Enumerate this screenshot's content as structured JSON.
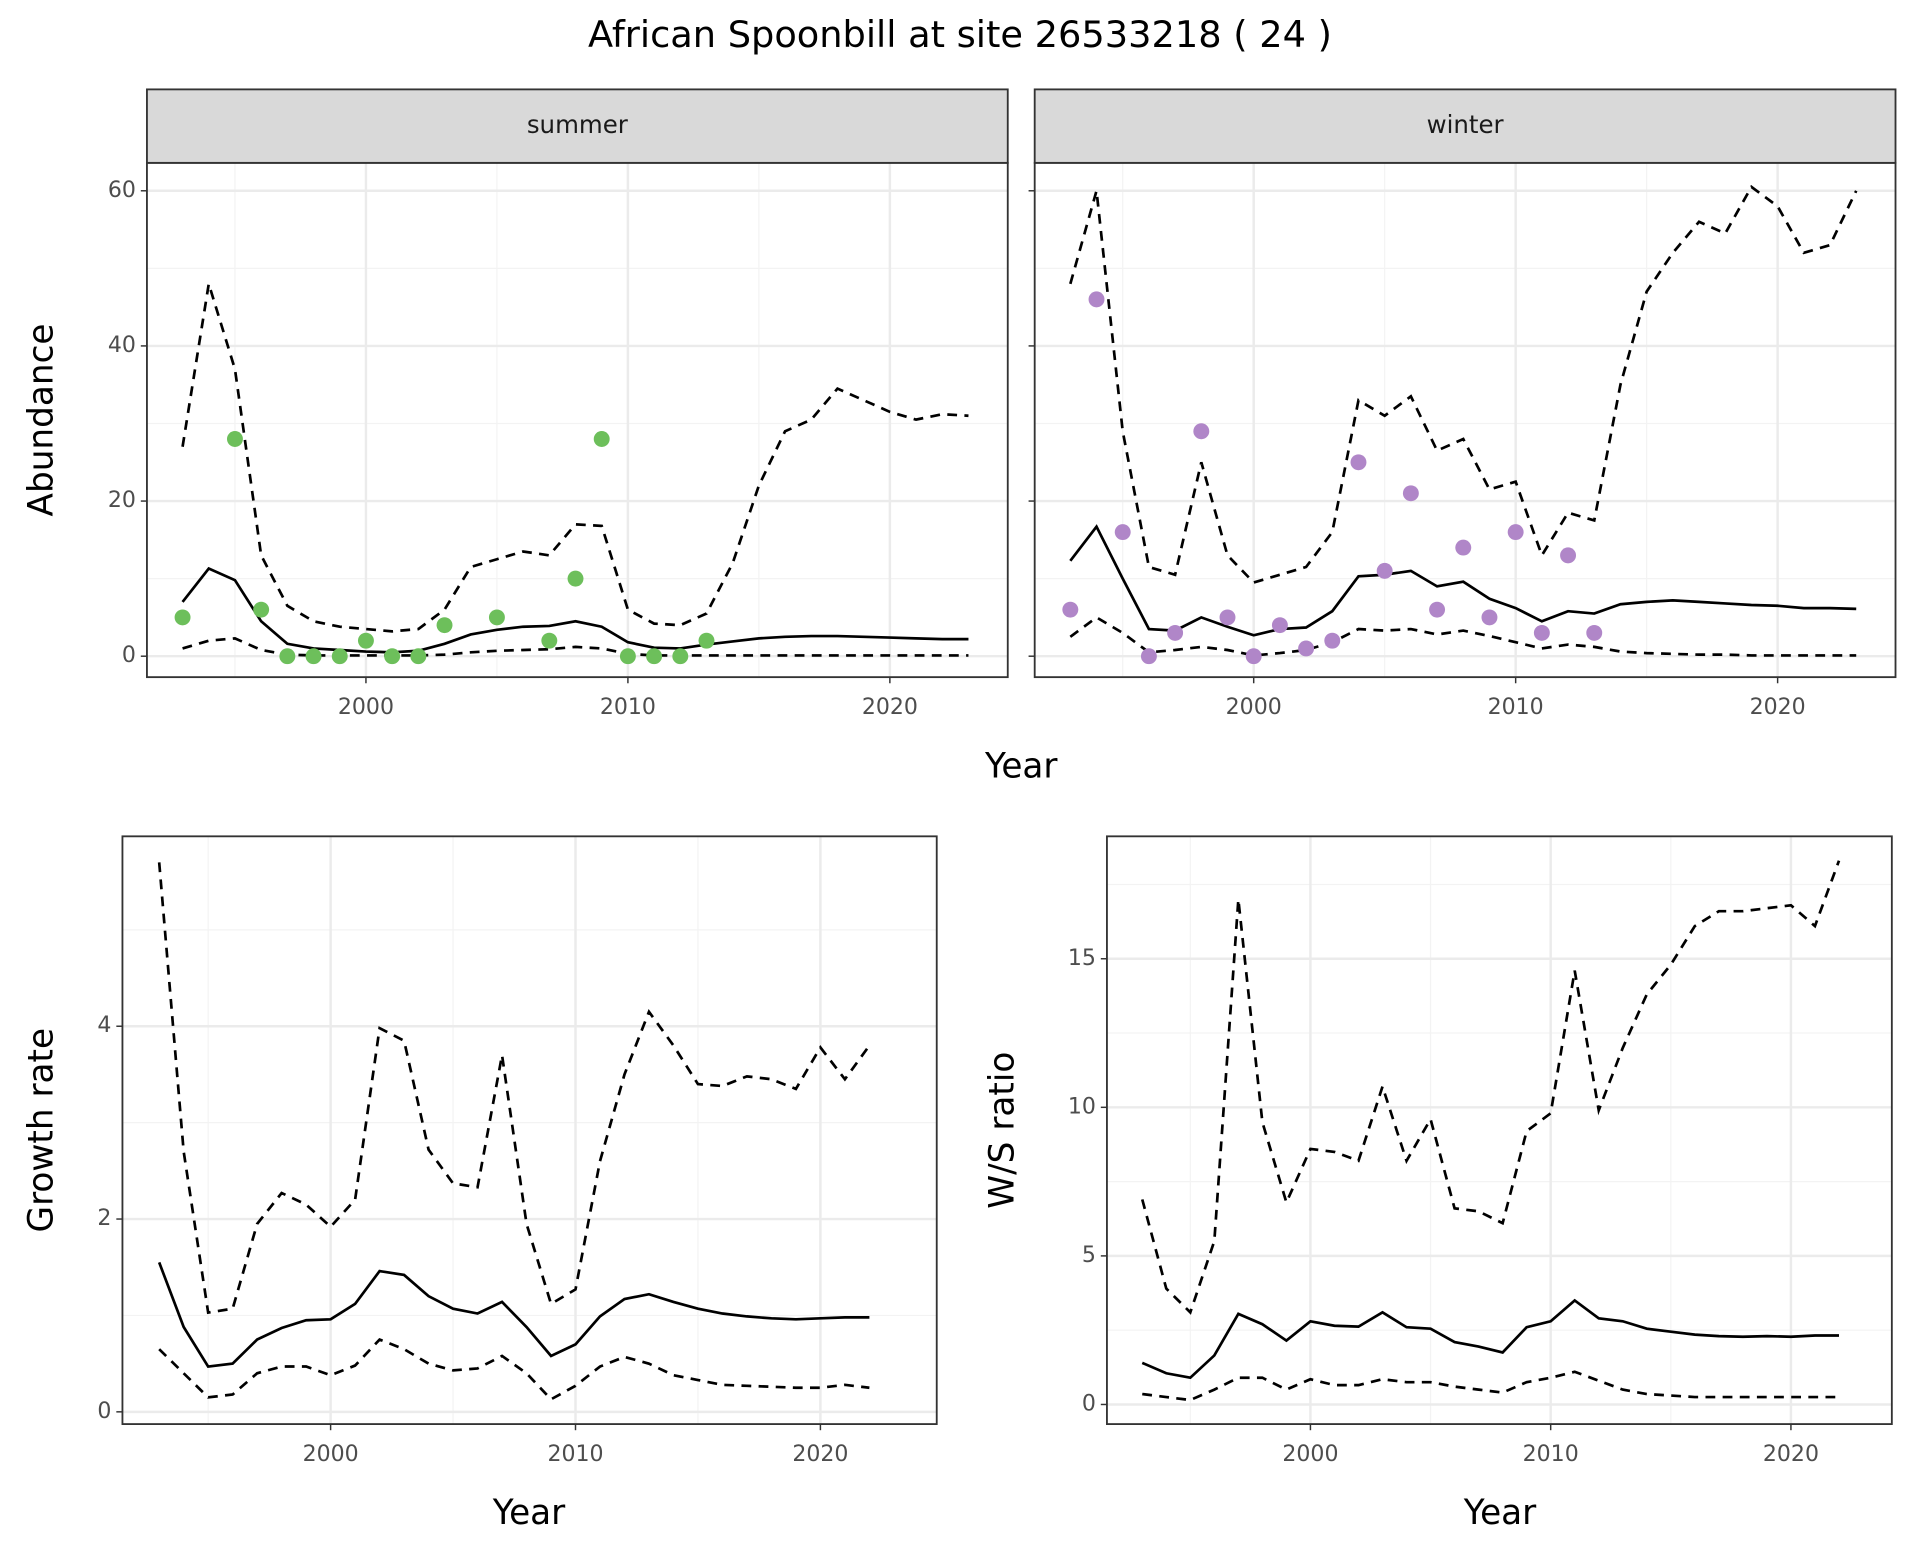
{
  "title": "African Spoonbill at site 26533218 ( 24 )",
  "chart_data": [
    {
      "type": "line",
      "facet": "summer",
      "xlabel": "Year",
      "ylabel": "Abundance",
      "xlim": [
        1991.64,
        2024.5
      ],
      "ylim": [
        -2.7,
        63.6
      ],
      "xticks": [
        2000,
        2010,
        2020
      ],
      "yticks": [
        0,
        20,
        40,
        60
      ],
      "show_ytick_labels": true,
      "grid": true,
      "series": [
        {
          "mark": "line",
          "dash": "dashed",
          "color": "#000000",
          "x": [
            1993,
            1994,
            1995,
            1996,
            1997,
            1998,
            1999,
            2000,
            2001,
            2002,
            2003,
            2004,
            2005,
            2006,
            2007,
            2008,
            2009,
            2010,
            2011,
            2012,
            2013,
            2014,
            2015,
            2016,
            2017,
            2018,
            2019,
            2020,
            2021,
            2022,
            2023
          ],
          "values": [
            27,
            48,
            37,
            13,
            6.5,
            4.5,
            3.8,
            3.5,
            3.2,
            3.5,
            6,
            11.5,
            12.5,
            13.5,
            13,
            17,
            16.8,
            6,
            4.2,
            4,
            5.5,
            12,
            22,
            29,
            30.5,
            34.5,
            33,
            31.5,
            30.5,
            31.2,
            31
          ]
        },
        {
          "mark": "line",
          "dash": "dashed",
          "color": "#000000",
          "x": [
            1993,
            1994,
            1995,
            1996,
            1997,
            1998,
            1999,
            2000,
            2001,
            2002,
            2003,
            2004,
            2005,
            2006,
            2007,
            2008,
            2009,
            2010,
            2011,
            2012,
            2013,
            2014,
            2015,
            2016,
            2017,
            2018,
            2019,
            2020,
            2021,
            2022,
            2023
          ],
          "values": [
            1,
            2,
            2.3,
            0.8,
            0.2,
            0.1,
            0.1,
            0.1,
            0.1,
            0.1,
            0.2,
            0.5,
            0.7,
            0.8,
            0.9,
            1.2,
            1,
            0.3,
            0.1,
            0.1,
            0.1,
            0.1,
            0.1,
            0.1,
            0.1,
            0.1,
            0.1,
            0.1,
            0.1,
            0.1,
            0.1
          ]
        },
        {
          "mark": "line",
          "dash": "solid",
          "color": "#000000",
          "x": [
            1993,
            1994,
            1995,
            1996,
            1997,
            1998,
            1999,
            2000,
            2001,
            2002,
            2003,
            2004,
            2005,
            2006,
            2007,
            2008,
            2009,
            2010,
            2011,
            2012,
            2013,
            2014,
            2015,
            2016,
            2017,
            2018,
            2019,
            2020,
            2021,
            2022,
            2023
          ],
          "values": [
            7,
            11.3,
            9.8,
            4.5,
            1.6,
            1,
            0.8,
            0.6,
            0.5,
            0.7,
            1.6,
            2.8,
            3.4,
            3.8,
            3.9,
            4.5,
            3.8,
            1.8,
            1.1,
            1,
            1.5,
            1.9,
            2.3,
            2.5,
            2.6,
            2.6,
            2.5,
            2.4,
            2.3,
            2.2,
            2.2
          ]
        },
        {
          "mark": "point",
          "color": "#6dbf5b",
          "x": [
            1993,
            1995,
            1996,
            1997,
            1998,
            1999,
            2000,
            2001,
            2002,
            2003,
            2005,
            2007,
            2008,
            2009,
            2010,
            2011,
            2012,
            2013
          ],
          "values": [
            5,
            28,
            6,
            0,
            0,
            0,
            2,
            0,
            0,
            4,
            5,
            2,
            10,
            28,
            0,
            0,
            0,
            2
          ]
        }
      ]
    },
    {
      "type": "line",
      "facet": "winter",
      "xlim": [
        1991.64,
        2024.5
      ],
      "ylim": [
        -2.7,
        63.6
      ],
      "xticks": [
        2000,
        2010,
        2020
      ],
      "yticks": [
        0,
        20,
        40,
        60
      ],
      "show_ytick_labels": false,
      "grid": true,
      "series": [
        {
          "mark": "line",
          "dash": "dashed",
          "color": "#000000",
          "x": [
            1993,
            1994,
            1995,
            1996,
            1997,
            1998,
            1999,
            2000,
            2001,
            2002,
            2003,
            2004,
            2005,
            2006,
            2007,
            2008,
            2009,
            2010,
            2011,
            2012,
            2013,
            2014,
            2015,
            2016,
            2017,
            2018,
            2019,
            2020,
            2021,
            2022,
            2023
          ],
          "values": [
            48,
            60,
            29,
            11.5,
            10.5,
            25,
            13,
            9.5,
            10.5,
            11.5,
            16,
            33,
            31,
            33.5,
            26.5,
            28,
            21.5,
            22.5,
            13,
            18.5,
            17.5,
            35,
            47,
            52,
            56,
            54.5,
            60.5,
            58,
            52,
            53,
            60
          ]
        },
        {
          "mark": "line",
          "dash": "dashed",
          "color": "#000000",
          "x": [
            1993,
            1994,
            1995,
            1996,
            1997,
            1998,
            1999,
            2000,
            2001,
            2002,
            2003,
            2004,
            2005,
            2006,
            2007,
            2008,
            2009,
            2010,
            2011,
            2012,
            2013,
            2014,
            2015,
            2016,
            2017,
            2018,
            2019,
            2020,
            2021,
            2022,
            2023
          ],
          "values": [
            2.5,
            5,
            3,
            0.5,
            0.8,
            1.2,
            0.8,
            0.1,
            0.4,
            0.8,
            1.8,
            3.5,
            3.3,
            3.5,
            2.8,
            3.3,
            2.6,
            1.8,
            1,
            1.5,
            1.2,
            0.6,
            0.4,
            0.3,
            0.2,
            0.2,
            0.1,
            0.1,
            0.1,
            0.1,
            0.1
          ]
        },
        {
          "mark": "line",
          "dash": "solid",
          "color": "#000000",
          "x": [
            1993,
            1994,
            1995,
            1996,
            1997,
            1998,
            1999,
            2000,
            2001,
            2002,
            2003,
            2004,
            2005,
            2006,
            2007,
            2008,
            2009,
            2010,
            2011,
            2012,
            2013,
            2014,
            2015,
            2016,
            2017,
            2018,
            2019,
            2020,
            2021,
            2022,
            2023
          ],
          "values": [
            12.3,
            16.7,
            10,
            3.5,
            3.3,
            5,
            3.8,
            2.7,
            3.5,
            3.7,
            5.8,
            10.3,
            10.5,
            11,
            9,
            9.6,
            7.4,
            6.2,
            4.5,
            5.8,
            5.5,
            6.7,
            7,
            7.2,
            7,
            6.8,
            6.6,
            6.5,
            6.2,
            6.2,
            6.1
          ]
        },
        {
          "mark": "point",
          "color": "#b086c8",
          "x": [
            1993,
            1994,
            1995,
            1996,
            1997,
            1998,
            1999,
            2000,
            2001,
            2002,
            2003,
            2004,
            2005,
            2006,
            2007,
            2008,
            2009,
            2010,
            2011,
            2012,
            2013
          ],
          "values": [
            6,
            46,
            16,
            0,
            3,
            29,
            5,
            0,
            4,
            1,
            2,
            25,
            11,
            21,
            6,
            14,
            5,
            16,
            3,
            13,
            3
          ]
        }
      ]
    },
    {
      "type": "line",
      "xlabel": "Year",
      "ylabel": "Growth rate",
      "xlim": [
        1991.5,
        2024.75
      ],
      "ylim": [
        -0.127,
        5.97
      ],
      "xticks": [
        2000,
        2010,
        2020
      ],
      "yticks": [
        0,
        2,
        4
      ],
      "show_ytick_labels": true,
      "grid": true,
      "series": [
        {
          "mark": "line",
          "dash": "dashed",
          "color": "#000000",
          "x": [
            1993,
            1994,
            1995,
            1996,
            1997,
            1998,
            1999,
            2000,
            2001,
            2002,
            2003,
            2004,
            2005,
            2006,
            2007,
            2008,
            2009,
            2010,
            2011,
            2012,
            2013,
            2014,
            2015,
            2016,
            2017,
            2018,
            2019,
            2020,
            2021,
            2022
          ],
          "values": [
            5.7,
            2.7,
            1.03,
            1.07,
            1.95,
            2.27,
            2.15,
            1.92,
            2.2,
            3.98,
            3.85,
            2.72,
            2.37,
            2.33,
            3.7,
            1.95,
            1.12,
            1.27,
            2.6,
            3.5,
            4.15,
            3.8,
            3.4,
            3.38,
            3.48,
            3.45,
            3.35,
            3.78,
            3.45,
            3.8
          ]
        },
        {
          "mark": "line",
          "dash": "dashed",
          "color": "#000000",
          "x": [
            1993,
            1994,
            1995,
            1996,
            1997,
            1998,
            1999,
            2000,
            2001,
            2002,
            2003,
            2004,
            2005,
            2006,
            2007,
            2008,
            2009,
            2010,
            2011,
            2012,
            2013,
            2014,
            2015,
            2016,
            2017,
            2018,
            2019,
            2020,
            2021,
            2022
          ],
          "values": [
            0.65,
            0.4,
            0.15,
            0.18,
            0.4,
            0.47,
            0.47,
            0.38,
            0.48,
            0.75,
            0.65,
            0.5,
            0.43,
            0.45,
            0.58,
            0.4,
            0.13,
            0.27,
            0.47,
            0.57,
            0.5,
            0.38,
            0.33,
            0.28,
            0.27,
            0.26,
            0.25,
            0.25,
            0.28,
            0.25
          ]
        },
        {
          "mark": "line",
          "dash": "solid",
          "color": "#000000",
          "x": [
            1993,
            1994,
            1995,
            1996,
            1997,
            1998,
            1999,
            2000,
            2001,
            2002,
            2003,
            2004,
            2005,
            2006,
            2007,
            2008,
            2009,
            2010,
            2011,
            2012,
            2013,
            2014,
            2015,
            2016,
            2017,
            2018,
            2019,
            2020,
            2021,
            2022
          ],
          "values": [
            1.55,
            0.88,
            0.47,
            0.5,
            0.75,
            0.87,
            0.95,
            0.96,
            1.12,
            1.46,
            1.42,
            1.2,
            1.07,
            1.02,
            1.14,
            0.88,
            0.58,
            0.7,
            0.99,
            1.17,
            1.22,
            1.14,
            1.07,
            1.02,
            0.99,
            0.97,
            0.96,
            0.97,
            0.98,
            0.98
          ]
        }
      ]
    },
    {
      "type": "line",
      "xlabel": "Year",
      "ylabel": "W/S ratio",
      "xlim": [
        1991.53,
        2024.2
      ],
      "ylim": [
        -0.66,
        19.12
      ],
      "xticks": [
        2000,
        2010,
        2020
      ],
      "yticks": [
        0,
        5,
        10,
        15
      ],
      "show_ytick_labels": true,
      "grid": true,
      "series": [
        {
          "mark": "line",
          "dash": "dashed",
          "color": "#000000",
          "x": [
            1993,
            1994,
            1995,
            1996,
            1997,
            1998,
            1999,
            2000,
            2001,
            2002,
            2003,
            2004,
            2005,
            2006,
            2007,
            2008,
            2009,
            2010,
            2011,
            2012,
            2013,
            2014,
            2015,
            2016,
            2017,
            2018,
            2019,
            2020,
            2021,
            2022
          ],
          "values": [
            6.9,
            3.9,
            3.1,
            5.5,
            17,
            9.5,
            6.8,
            8.6,
            8.5,
            8.2,
            10.7,
            8.2,
            9.6,
            6.6,
            6.5,
            6.1,
            9.2,
            9.8,
            14.6,
            9.9,
            12,
            13.8,
            14.8,
            16.1,
            16.6,
            16.6,
            16.7,
            16.8,
            16.1,
            18.3
          ]
        },
        {
          "mark": "line",
          "dash": "dashed",
          "color": "#000000",
          "x": [
            1993,
            1994,
            1995,
            1996,
            1997,
            1998,
            1999,
            2000,
            2001,
            2002,
            2003,
            2004,
            2005,
            2006,
            2007,
            2008,
            2009,
            2010,
            2011,
            2012,
            2013,
            2014,
            2015,
            2016,
            2017,
            2018,
            2019,
            2020,
            2021,
            2022
          ],
          "values": [
            0.35,
            0.25,
            0.15,
            0.5,
            0.9,
            0.9,
            0.5,
            0.85,
            0.65,
            0.65,
            0.85,
            0.75,
            0.75,
            0.6,
            0.5,
            0.4,
            0.75,
            0.9,
            1.1,
            0.8,
            0.5,
            0.35,
            0.3,
            0.25,
            0.25,
            0.25,
            0.25,
            0.25,
            0.25,
            0.25
          ]
        },
        {
          "mark": "line",
          "dash": "solid",
          "color": "#000000",
          "x": [
            1993,
            1994,
            1995,
            1996,
            1997,
            1998,
            1999,
            2000,
            2001,
            2002,
            2003,
            2004,
            2005,
            2006,
            2007,
            2008,
            2009,
            2010,
            2011,
            2012,
            2013,
            2014,
            2015,
            2016,
            2017,
            2018,
            2019,
            2020,
            2021,
            2022
          ],
          "values": [
            1.4,
            1.05,
            0.9,
            1.65,
            3.05,
            2.7,
            2.15,
            2.8,
            2.65,
            2.62,
            3.1,
            2.6,
            2.55,
            2.1,
            1.95,
            1.75,
            2.6,
            2.8,
            3.5,
            2.9,
            2.8,
            2.55,
            2.45,
            2.35,
            2.3,
            2.28,
            2.3,
            2.28,
            2.32,
            2.32
          ]
        }
      ]
    }
  ]
}
